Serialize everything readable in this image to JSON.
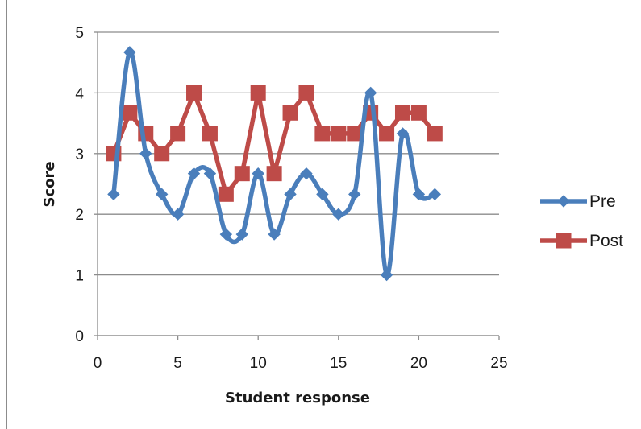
{
  "chart_data": {
    "type": "line",
    "xlabel": "Student  response",
    "ylabel": "Score",
    "xlim": [
      0,
      25
    ],
    "ylim": [
      0,
      5
    ],
    "xticks": [
      "0",
      "5",
      "10",
      "15",
      "20",
      "25"
    ],
    "yticks": [
      "0",
      "1",
      "2",
      "3",
      "4",
      "5"
    ],
    "grid": "horizontal",
    "legend_position": "right",
    "series": [
      {
        "name": "Pre",
        "color": "#4a7ebb",
        "marker": "diamond",
        "smooth": true,
        "x": [
          1,
          2,
          3,
          4,
          5,
          6,
          7,
          8,
          9,
          10,
          11,
          12,
          13,
          14,
          15,
          16,
          17,
          18,
          19,
          20,
          21
        ],
        "y": [
          2.33,
          4.67,
          3.0,
          2.33,
          2.0,
          2.67,
          2.67,
          1.67,
          1.67,
          2.67,
          1.67,
          2.33,
          2.67,
          2.33,
          2.0,
          2.33,
          4.0,
          1.0,
          3.33,
          2.33,
          2.33
        ]
      },
      {
        "name": "Post",
        "color": "#be4b48",
        "marker": "square",
        "smooth": false,
        "x": [
          1,
          2,
          3,
          4,
          5,
          6,
          7,
          8,
          9,
          10,
          11,
          12,
          13,
          14,
          15,
          16,
          17,
          18,
          19,
          20,
          21
        ],
        "y": [
          3.0,
          3.67,
          3.33,
          3.0,
          3.33,
          4.0,
          3.33,
          2.33,
          2.67,
          4.0,
          2.67,
          3.67,
          4.0,
          3.33,
          3.33,
          3.33,
          3.67,
          3.33,
          3.67,
          3.67,
          3.33
        ]
      }
    ]
  }
}
